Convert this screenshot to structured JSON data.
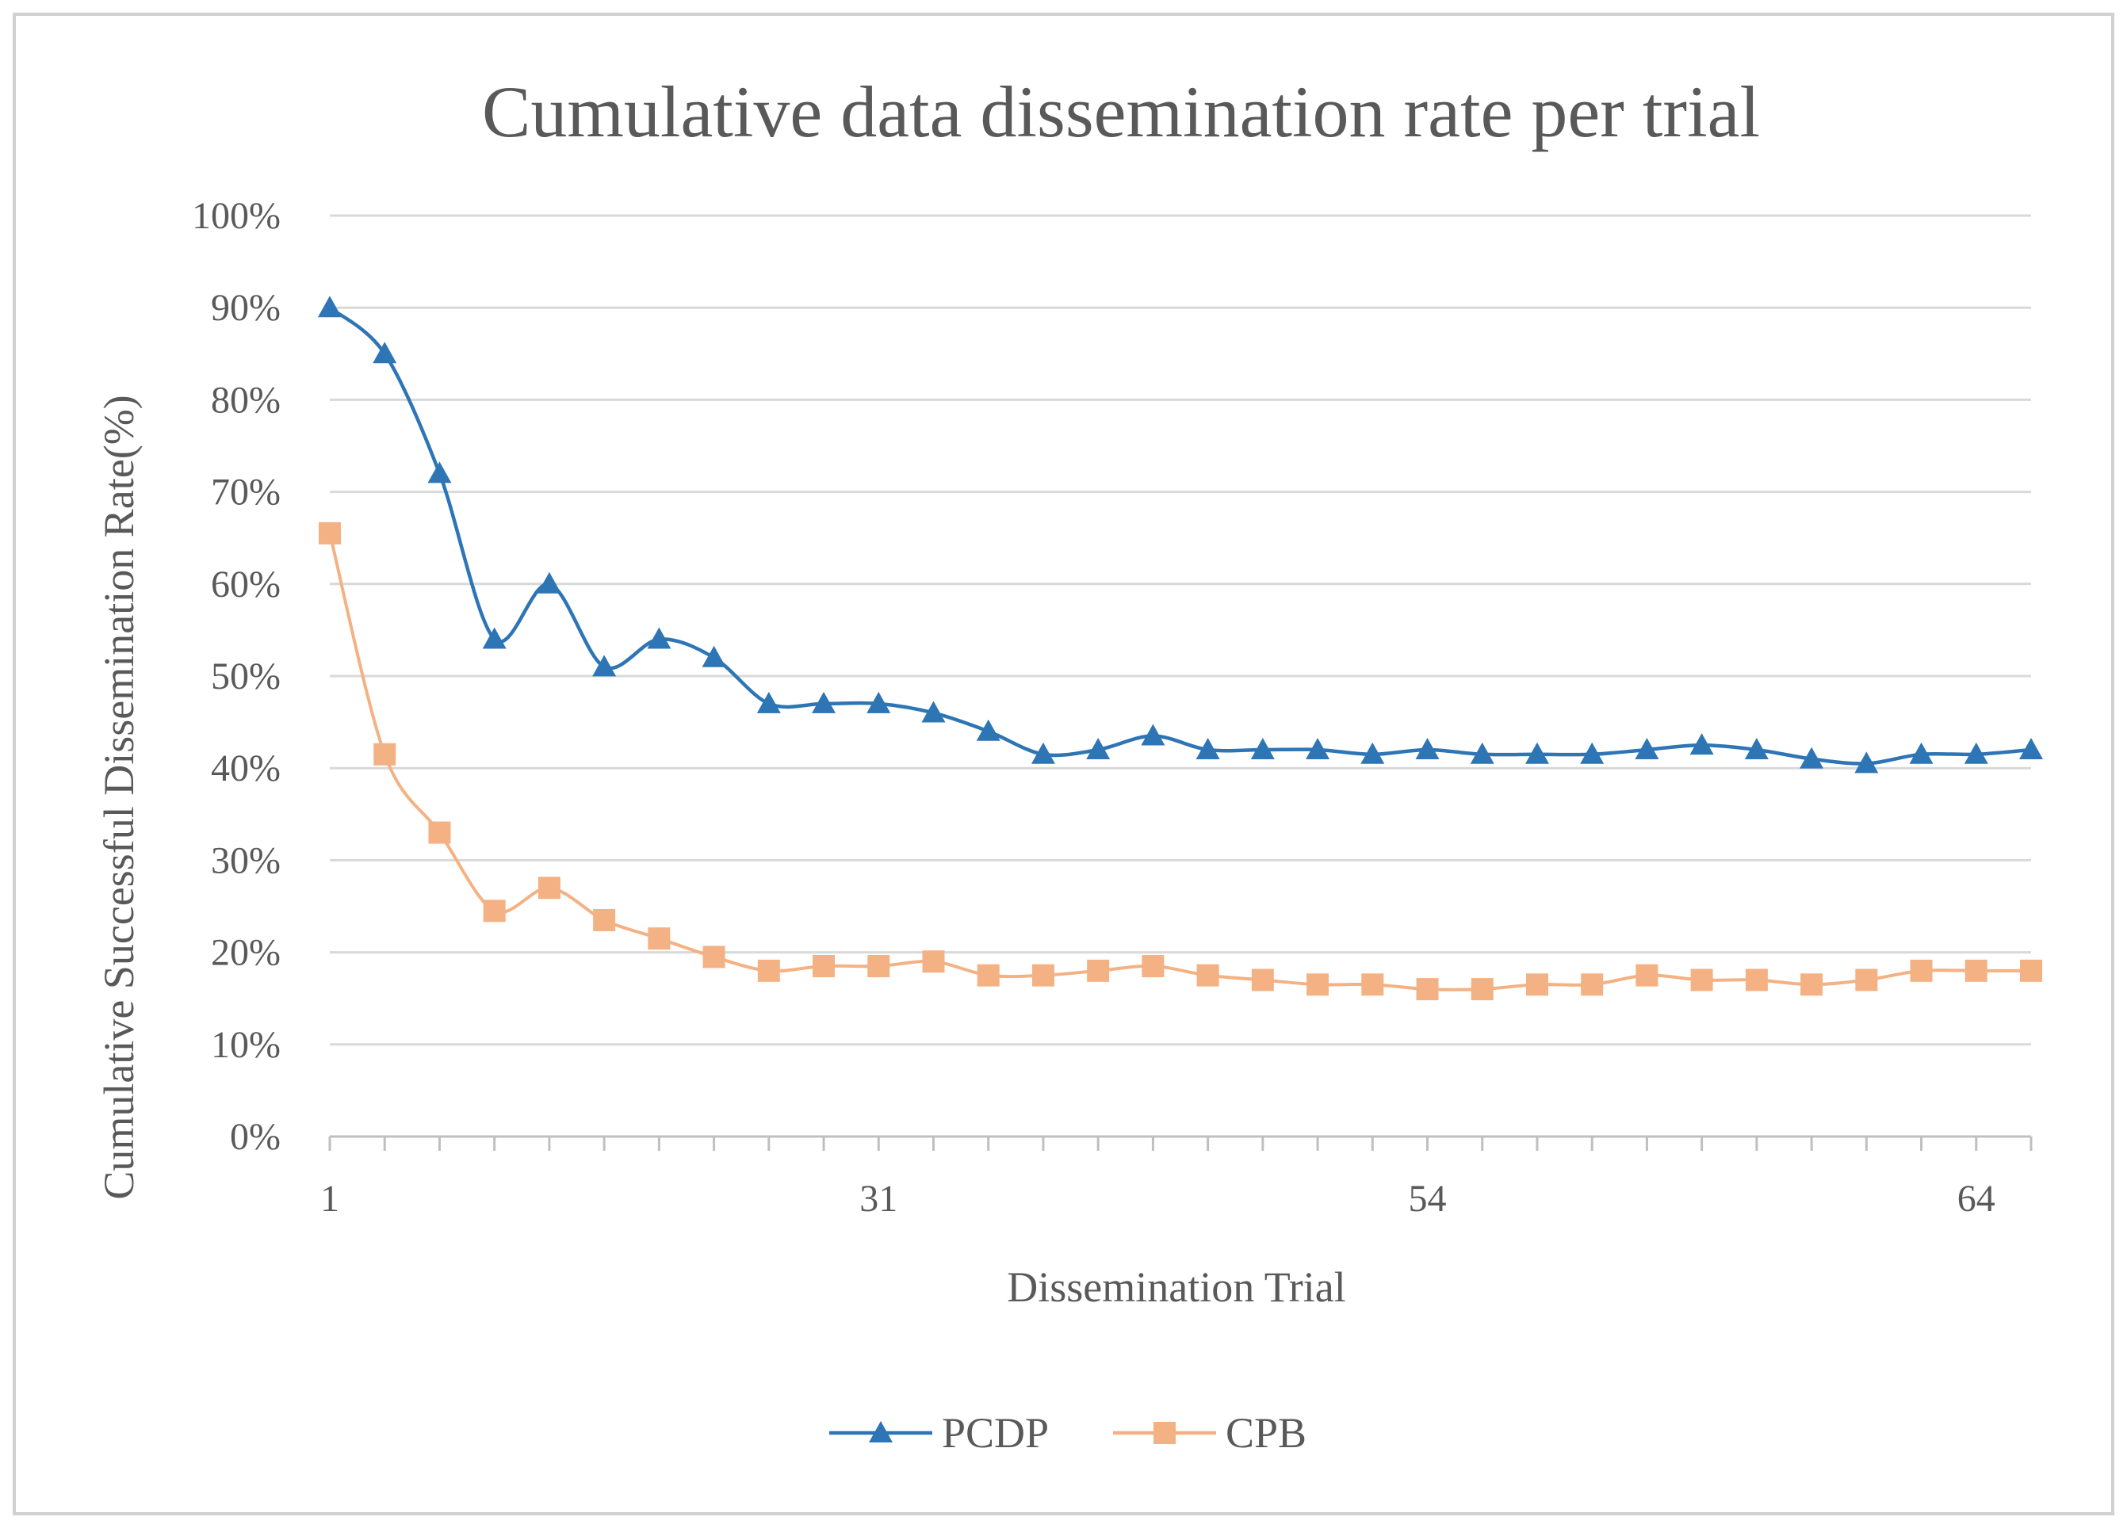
{
  "chart_data": {
    "type": "line",
    "title": "Cumulative data dissemination rate per trial",
    "xlabel": "Dissemination Trial",
    "ylabel": "Cumulative Successful Dissemination Rate(%)",
    "ylim": [
      0,
      100
    ],
    "yticks": [
      "0%",
      "10%",
      "20%",
      "30%",
      "40%",
      "50%",
      "60%",
      "70%",
      "80%",
      "90%",
      "100%"
    ],
    "ytick_values": [
      0,
      10,
      20,
      30,
      40,
      50,
      60,
      70,
      80,
      90,
      100
    ],
    "x_tick_labels": [
      {
        "index": 0,
        "label": "1"
      },
      {
        "index": 10,
        "label": "31"
      },
      {
        "index": 20,
        "label": "54"
      },
      {
        "index": 30,
        "label": "64"
      }
    ],
    "grid": true,
    "legend_position": "bottom",
    "series": [
      {
        "name": "PCDP",
        "color": "#2E75B6",
        "marker": "triangle",
        "values": [
          90,
          85,
          72,
          54,
          60,
          51,
          54,
          52,
          47,
          47,
          47,
          46,
          44,
          41.5,
          42,
          43.5,
          42,
          42,
          42,
          41.5,
          42,
          41.5,
          41.5,
          41.5,
          42,
          42.5,
          42,
          41,
          40.5,
          41.5,
          41.5,
          42
        ]
      },
      {
        "name": "CPB",
        "color": "#F4B183",
        "marker": "square",
        "values": [
          65.5,
          41.5,
          33,
          24.5,
          27,
          23.5,
          21.5,
          19.5,
          18,
          18.5,
          18.5,
          19,
          17.5,
          17.5,
          18,
          18.5,
          17.5,
          17,
          16.5,
          16.5,
          16,
          16,
          16.5,
          16.5,
          17.5,
          17,
          17,
          16.5,
          17,
          18,
          18,
          18
        ]
      }
    ]
  }
}
